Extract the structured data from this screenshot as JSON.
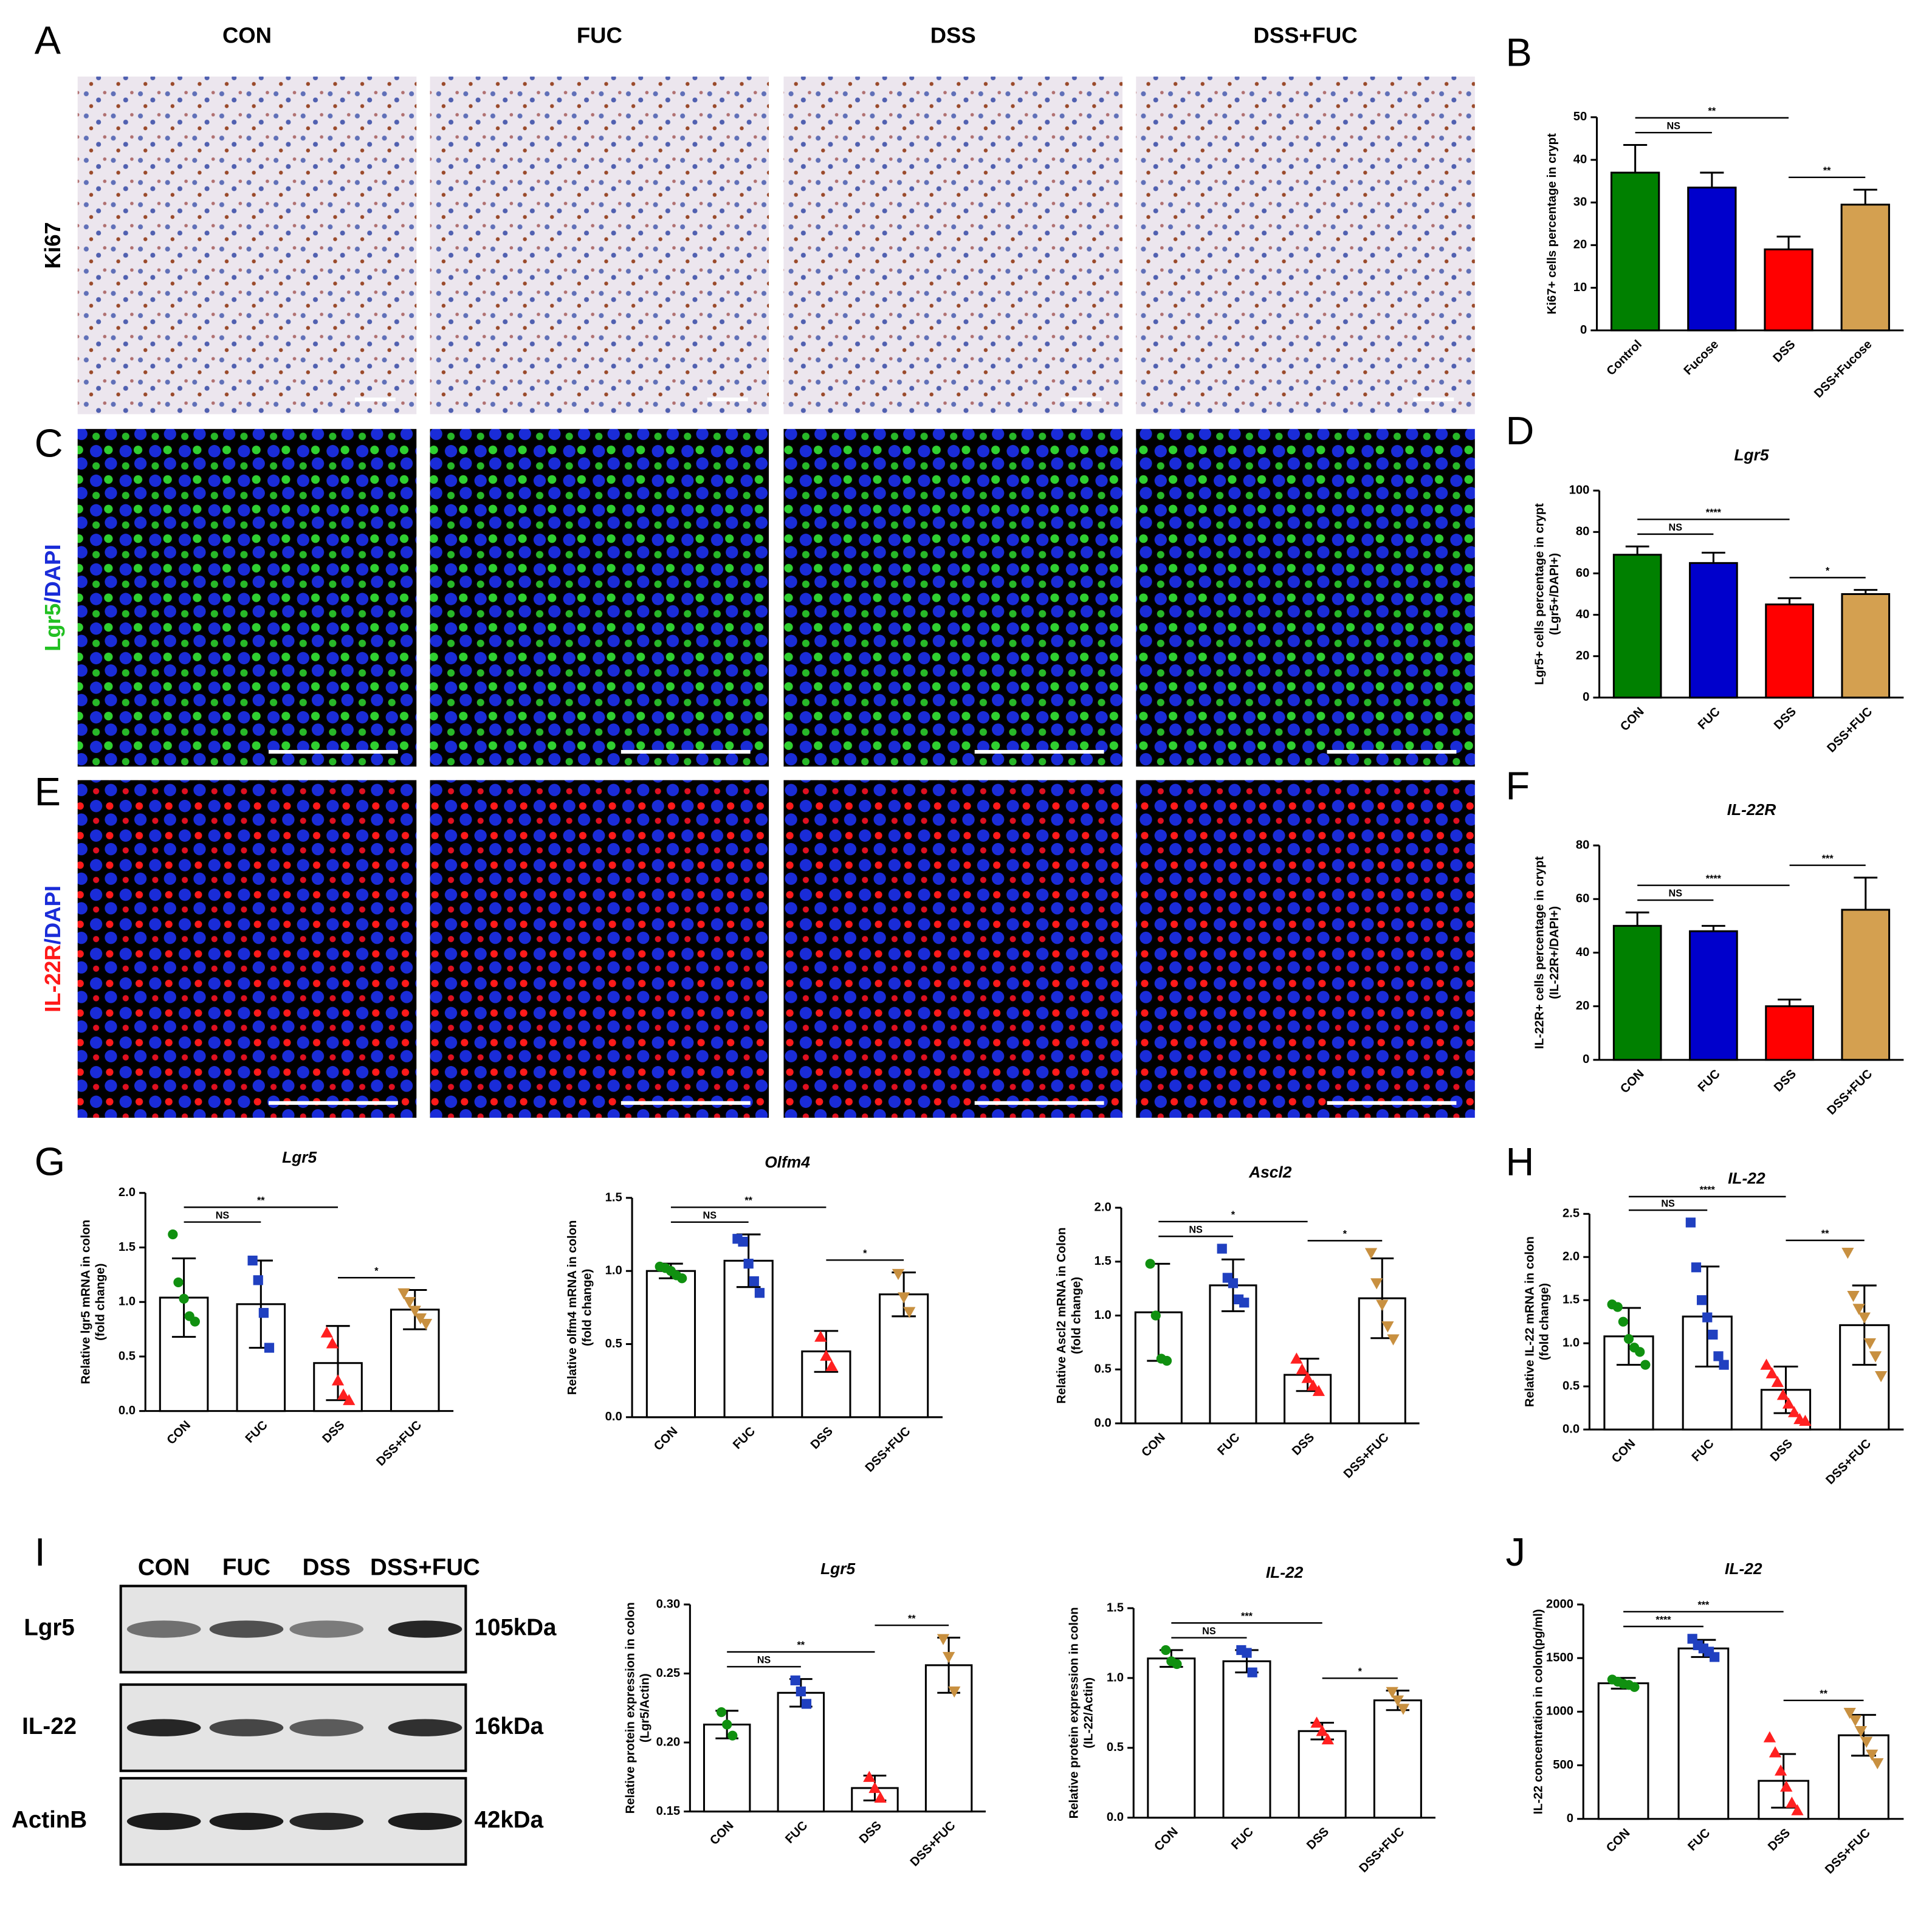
{
  "figure": {
    "panel_labels": [
      "A",
      "B",
      "C",
      "D",
      "E",
      "F",
      "G",
      "H",
      "I",
      "J"
    ],
    "columns": [
      "CON",
      "FUC",
      "DSS",
      "DSS+FUC"
    ],
    "rows": [
      {
        "marker": "Ki67"
      },
      {
        "marker": "Lgr5",
        "counterstain": "/DAPI"
      },
      {
        "marker": "IL-22R",
        "counterstain": "/DAPI"
      }
    ],
    "western_blot": {
      "lanes": [
        "CON",
        "FUC",
        "DSS",
        "DSS+FUC"
      ],
      "proteins": [
        {
          "name": "Lgr5",
          "size": "105kDa"
        },
        {
          "name": "IL-22",
          "size": "16kDa"
        },
        {
          "name": "ActinB",
          "size": "42kDa"
        }
      ]
    }
  },
  "chart_data": [
    {
      "type": "bar",
      "ylabel": [
        "Ki67+ cells percentage in crypt"
      ],
      "categories": [
        "Control",
        "Fucose",
        "DSS",
        "DSS+Fucose"
      ],
      "values": [
        37,
        33.5,
        19,
        29.5
      ],
      "errors": [
        6.5,
        3.5,
        3,
        3.5
      ],
      "error_direction": "up",
      "colors": [
        "#008000",
        "#0000cc",
        "#ff0000",
        "#d4a050"
      ],
      "ylim": [
        0,
        50
      ],
      "yticks": [
        0,
        10,
        20,
        30,
        40,
        50
      ],
      "annotations": [
        {
          "from": 0,
          "to": 1,
          "text": "NS"
        },
        {
          "from": 0,
          "to": 2,
          "text": "**"
        },
        {
          "from": 2,
          "to": 3,
          "text": "**"
        }
      ]
    },
    {
      "type": "bar",
      "title": "Lgr5",
      "ylabel": [
        "Lgr5+ cells percentage in crypt",
        "(Lgr5+/DAPI+)"
      ],
      "categories": [
        "CON",
        "FUC",
        "DSS",
        "DSS+FUC"
      ],
      "values": [
        69,
        65,
        45,
        50
      ],
      "errors": [
        4,
        5,
        3,
        2
      ],
      "error_direction": "up",
      "colors": [
        "#008000",
        "#0000cc",
        "#ff0000",
        "#d4a050"
      ],
      "ylim": [
        0,
        100
      ],
      "yticks": [
        0,
        20,
        40,
        60,
        80,
        100
      ],
      "annotations": [
        {
          "from": 0,
          "to": 1,
          "text": "NS"
        },
        {
          "from": 0,
          "to": 2,
          "text": "****"
        },
        {
          "from": 2,
          "to": 3,
          "text": "*"
        }
      ]
    },
    {
      "type": "bar",
      "title": "IL-22R",
      "ylabel": [
        "IL-22R+ cells percentage in crypt",
        "(IL-22R+/DAPI+)"
      ],
      "categories": [
        "CON",
        "FUC",
        "DSS",
        "DSS+FUC"
      ],
      "values": [
        50,
        48,
        20,
        56
      ],
      "errors": [
        5,
        2,
        2.5,
        12
      ],
      "error_direction": "up",
      "colors": [
        "#008000",
        "#0000cc",
        "#ff0000",
        "#d4a050"
      ],
      "ylim": [
        0,
        80
      ],
      "yticks": [
        0,
        20,
        40,
        60,
        80
      ],
      "annotations": [
        {
          "from": 0,
          "to": 1,
          "text": "NS"
        },
        {
          "from": 0,
          "to": 2,
          "text": "****"
        },
        {
          "from": 2,
          "to": 3,
          "text": "***"
        }
      ]
    },
    {
      "type": "bar",
      "title": "Lgr5",
      "ylabel": [
        "Relative lgr5 mRNA in colon",
        "(fold change)"
      ],
      "categories": [
        "CON",
        "FUC",
        "DSS",
        "DSS+FUC"
      ],
      "values": [
        1.04,
        0.98,
        0.44,
        0.93
      ],
      "errors": [
        0.36,
        0.4,
        0.34,
        0.18
      ],
      "error_direction": "both",
      "bar_color": "#ffffff",
      "colors": [
        "#109010",
        "#2040c0",
        "#ff2020",
        "#c89040"
      ],
      "markers": [
        "circle",
        "square",
        "triangle",
        "triangle-down"
      ],
      "points": [
        [
          1.62,
          1.18,
          1.03,
          0.87,
          0.82
        ],
        [
          1.38,
          1.2,
          0.9,
          0.58
        ],
        [
          0.72,
          0.62,
          0.28,
          0.15,
          0.1
        ],
        [
          1.08,
          1.0,
          0.92,
          0.85,
          0.8
        ]
      ],
      "ylim": [
        0,
        2
      ],
      "yticks": [
        {
          "value": 0,
          "label": "0.0"
        },
        0.5,
        {
          "value": 1,
          "label": "1.0"
        },
        1.5,
        {
          "value": 2,
          "label": "2.0"
        }
      ],
      "annotations": [
        {
          "from": 0,
          "to": 1,
          "text": "NS"
        },
        {
          "from": 0,
          "to": 2,
          "text": "**"
        },
        {
          "from": 2,
          "to": 3,
          "text": "*"
        }
      ]
    },
    {
      "type": "bar",
      "title": "Olfm4",
      "ylabel": [
        "Relative olfm4 mRNA in colon",
        "(fold change)"
      ],
      "categories": [
        "CON",
        "FUC",
        "DSS",
        "DSS+FUC"
      ],
      "values": [
        1.0,
        1.07,
        0.45,
        0.84
      ],
      "errors": [
        0.05,
        0.18,
        0.14,
        0.15
      ],
      "error_direction": "both",
      "bar_color": "#ffffff",
      "colors": [
        "#109010",
        "#2040c0",
        "#ff2020",
        "#c89040"
      ],
      "markers": [
        "circle",
        "square",
        "triangle",
        "triangle-down"
      ],
      "points": [
        [
          1.03,
          1.02,
          1.0,
          0.97,
          0.95
        ],
        [
          1.22,
          1.2,
          1.05,
          0.93,
          0.85
        ],
        [
          0.55,
          0.42,
          0.35
        ],
        [
          0.98,
          0.82,
          0.72
        ]
      ],
      "ylim": [
        0,
        1.5
      ],
      "yticks": [
        {
          "value": 0,
          "label": "0.0"
        },
        0.5,
        {
          "value": 1,
          "label": "1.0"
        },
        1.5
      ],
      "annotations": [
        {
          "from": 0,
          "to": 1,
          "text": "NS"
        },
        {
          "from": 0,
          "to": 2,
          "text": "**"
        },
        {
          "from": 2,
          "to": 3,
          "text": "*"
        }
      ]
    },
    {
      "type": "bar",
      "title": "Ascl2",
      "ylabel": [
        "Relative Ascl2 mRNA in Colon",
        "(fold change)"
      ],
      "categories": [
        "CON",
        "FUC",
        "DSS",
        "DSS+FUC"
      ],
      "values": [
        1.03,
        1.28,
        0.45,
        1.16
      ],
      "errors": [
        0.45,
        0.24,
        0.15,
        0.37
      ],
      "error_direction": "both",
      "bar_color": "#ffffff",
      "colors": [
        "#109010",
        "#2040c0",
        "#ff2020",
        "#c89040"
      ],
      "markers": [
        "circle",
        "square",
        "triangle",
        "triangle-down"
      ],
      "points": [
        [
          1.48,
          1.0,
          0.6,
          0.58
        ],
        [
          1.62,
          1.35,
          1.3,
          1.15,
          1.12
        ],
        [
          0.6,
          0.5,
          0.42,
          0.35,
          0.3
        ],
        [
          1.58,
          1.3,
          1.1,
          0.9,
          0.78
        ]
      ],
      "ylim": [
        0,
        2
      ],
      "yticks": [
        {
          "value": 0,
          "label": "0.0"
        },
        0.5,
        {
          "value": 1,
          "label": "1.0"
        },
        1.5,
        {
          "value": 2,
          "label": "2.0"
        }
      ],
      "annotations": [
        {
          "from": 0,
          "to": 1,
          "text": "NS"
        },
        {
          "from": 0,
          "to": 2,
          "text": "*"
        },
        {
          "from": 2,
          "to": 3,
          "text": "*"
        }
      ]
    },
    {
      "type": "bar",
      "title": "IL-22",
      "ylabel": [
        "Relative IL-22 mRNA in colon",
        "(fold change)"
      ],
      "categories": [
        "CON",
        "FUC",
        "DSS",
        "DSS+FUC"
      ],
      "values": [
        1.08,
        1.31,
        0.46,
        1.21
      ],
      "errors": [
        0.33,
        0.58,
        0.27,
        0.46
      ],
      "error_direction": "both",
      "bar_color": "#ffffff",
      "colors": [
        "#109010",
        "#2040c0",
        "#ff2020",
        "#c89040"
      ],
      "markers": [
        "circle",
        "square",
        "triangle",
        "triangle-down"
      ],
      "points": [
        [
          1.45,
          1.42,
          1.25,
          1.05,
          0.95,
          0.9,
          0.75
        ],
        [
          2.4,
          1.88,
          1.5,
          1.3,
          1.1,
          0.85,
          0.75
        ],
        [
          0.75,
          0.65,
          0.55,
          0.4,
          0.3,
          0.2,
          0.12,
          0.1
        ],
        [
          2.05,
          1.55,
          1.4,
          1.3,
          1.0,
          0.85,
          0.62
        ]
      ],
      "ylim": [
        0,
        2.5
      ],
      "yticks": [
        {
          "value": 0,
          "label": "0.0"
        },
        0.5,
        {
          "value": 1,
          "label": "1.0"
        },
        1.5,
        {
          "value": 2,
          "label": "2.0"
        },
        2.5
      ],
      "annotations": [
        {
          "from": 0,
          "to": 1,
          "text": "NS"
        },
        {
          "from": 0,
          "to": 2,
          "text": "****"
        },
        {
          "from": 2,
          "to": 3,
          "text": "**"
        }
      ]
    },
    {
      "type": "bar",
      "title": "Lgr5",
      "ylabel": [
        "Relative protein expression in colon",
        "(Lgr5/Actin)"
      ],
      "categories": [
        "CON",
        "FUC",
        "DSS",
        "DSS+FUC"
      ],
      "values": [
        0.213,
        0.236,
        0.167,
        0.256
      ],
      "errors": [
        0.01,
        0.01,
        0.009,
        0.02
      ],
      "error_direction": "both",
      "bar_color": "#ffffff",
      "colors": [
        "#109010",
        "#2040c0",
        "#ff2020",
        "#c89040"
      ],
      "markers": [
        "circle",
        "square",
        "triangle",
        "triangle-down"
      ],
      "points": [
        [
          0.222,
          0.213,
          0.205
        ],
        [
          0.245,
          0.237,
          0.228
        ],
        [
          0.175,
          0.167,
          0.16
        ],
        [
          0.275,
          0.262,
          0.237
        ]
      ],
      "ylim": [
        0.15,
        0.3
      ],
      "yticks": [
        0.15,
        {
          "value": 0.2,
          "label": "0.20"
        },
        0.25,
        {
          "value": 0.3,
          "label": "0.30"
        }
      ],
      "annotations": [
        {
          "from": 0,
          "to": 1,
          "text": "NS"
        },
        {
          "from": 0,
          "to": 2,
          "text": "**"
        },
        {
          "from": 2,
          "to": 3,
          "text": "**"
        }
      ]
    },
    {
      "type": "bar",
      "title": "IL-22",
      "ylabel": [
        "Relative protein expression in colon",
        "(IL-22/Actin)"
      ],
      "categories": [
        "CON",
        "FUC",
        "DSS",
        "DSS+FUC"
      ],
      "values": [
        1.14,
        1.12,
        0.62,
        0.84
      ],
      "errors": [
        0.06,
        0.08,
        0.06,
        0.07
      ],
      "error_direction": "both",
      "bar_color": "#ffffff",
      "colors": [
        "#109010",
        "#2040c0",
        "#ff2020",
        "#c89040"
      ],
      "markers": [
        "circle",
        "square",
        "triangle",
        "triangle-down"
      ],
      "points": [
        [
          1.2,
          1.12,
          1.1
        ],
        [
          1.2,
          1.18,
          1.04
        ],
        [
          0.68,
          0.62,
          0.56
        ],
        [
          0.9,
          0.84,
          0.78
        ]
      ],
      "ylim": [
        0,
        1.5
      ],
      "yticks": [
        {
          "value": 0,
          "label": "0.0"
        },
        0.5,
        {
          "value": 1,
          "label": "1.0"
        },
        1.5
      ],
      "annotations": [
        {
          "from": 0,
          "to": 1,
          "text": "NS"
        },
        {
          "from": 0,
          "to": 2,
          "text": "***"
        },
        {
          "from": 2,
          "to": 3,
          "text": "*"
        }
      ]
    },
    {
      "type": "bar",
      "title": "IL-22",
      "ylabel": [
        "IL-22 concentration in colon(pg/ml)"
      ],
      "categories": [
        "CON",
        "FUC",
        "DSS",
        "DSS+FUC"
      ],
      "values": [
        1265,
        1590,
        355,
        780
      ],
      "errors": [
        50,
        80,
        250,
        190
      ],
      "error_direction": "both",
      "bar_color": "#ffffff",
      "colors": [
        "#109010",
        "#2040c0",
        "#ff2020",
        "#c89040"
      ],
      "markers": [
        "circle",
        "square",
        "triangle",
        "triangle-down"
      ],
      "points": [
        [
          1300,
          1280,
          1260,
          1250,
          1230
        ],
        [
          1680,
          1620,
          1590,
          1560,
          1510
        ],
        [
          760,
          620,
          450,
          300,
          150,
          80
        ],
        [
          990,
          920,
          820,
          720,
          600,
          520
        ]
      ],
      "ylim": [
        0,
        2000
      ],
      "yticks": [
        0,
        500,
        1000,
        1500,
        2000
      ],
      "annotations": [
        {
          "from": 0,
          "to": 1,
          "text": "****"
        },
        {
          "from": 0,
          "to": 2,
          "text": "***"
        },
        {
          "from": 2,
          "to": 3,
          "text": "**"
        }
      ]
    }
  ]
}
